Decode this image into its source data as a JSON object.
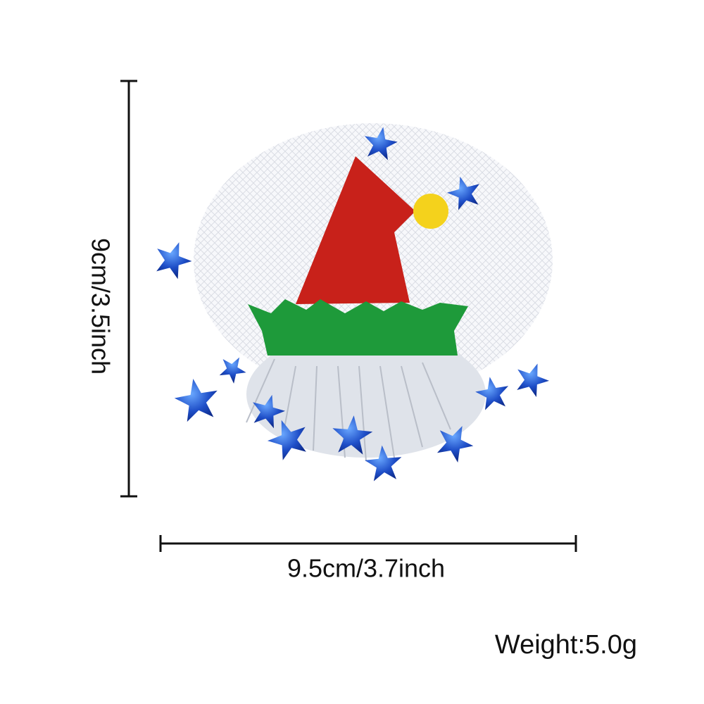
{
  "dimensions": {
    "height": "9cm/3.5inch",
    "width": "9.5cm/3.7inch"
  },
  "weight": "Weight:5.0g"
}
